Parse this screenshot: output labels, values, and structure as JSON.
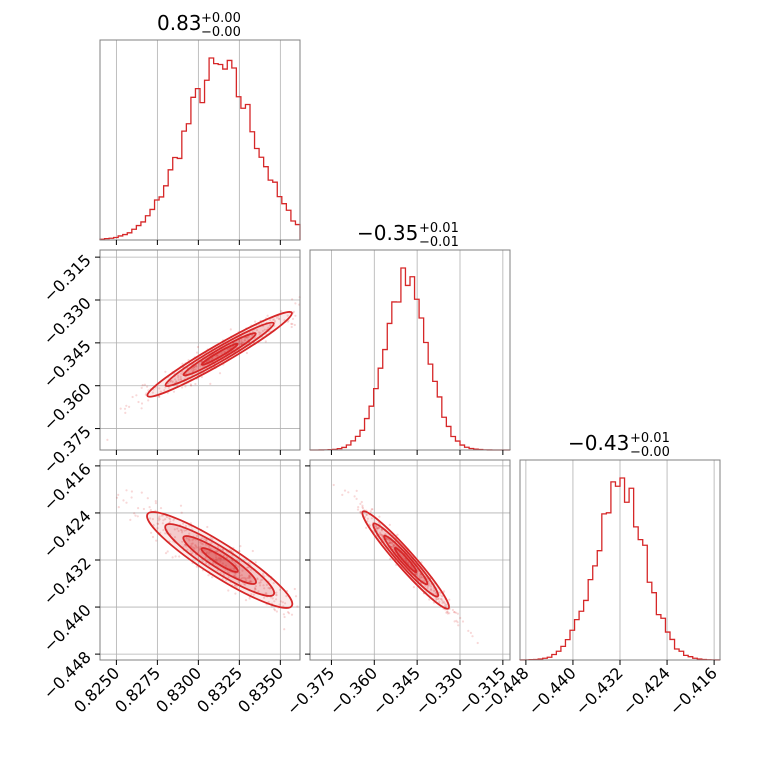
{
  "colors": {
    "accent": "#d62728",
    "grid": "#b0b0b0",
    "frame": "#808080"
  },
  "titles": [
    {
      "main": "0.83",
      "plus": "+0.00",
      "minus": "−0.00"
    },
    {
      "main": "−0.35",
      "plus": "+0.01",
      "minus": "−0.01"
    },
    {
      "main": "−0.43",
      "plus": "+0.01",
      "minus": "−0.00"
    }
  ],
  "chart_data": {
    "type": "corner",
    "grid": true,
    "params": [
      {
        "name": "",
        "range": [
          0.824,
          0.8362
        ],
        "ticks": [
          0.825,
          0.8275,
          0.83,
          0.8325,
          0.835
        ],
        "tick_labels": [
          "0.8250",
          "0.8275",
          "0.8300",
          "0.8325",
          "0.8350"
        ]
      },
      {
        "name": "",
        "range": [
          -0.3825,
          -0.3125
        ],
        "ticks": [
          -0.375,
          -0.36,
          -0.345,
          -0.33,
          -0.315
        ],
        "tick_labels": [
          "−0.375",
          "−0.360",
          "−0.345",
          "−0.330",
          "−0.315"
        ]
      },
      {
        "name": "",
        "range": [
          -0.449,
          -0.415
        ],
        "ticks": [
          -0.448,
          -0.44,
          -0.432,
          -0.424,
          -0.416
        ],
        "tick_labels": [
          "−0.448",
          "−0.440",
          "−0.432",
          "−0.424",
          "−0.416"
        ]
      }
    ],
    "histograms": [
      {
        "param": 0,
        "peak": 0.8313,
        "sigma": 0.0022,
        "bins": 44
      },
      {
        "param": 1,
        "peak": -0.349,
        "sigma": 0.0075,
        "bins": 44
      },
      {
        "param": 2,
        "peak": -0.432,
        "sigma": 0.0042,
        "bins": 44
      }
    ],
    "pairs": [
      {
        "x": 0,
        "y": 1,
        "correlation": 0.97
      },
      {
        "x": 0,
        "y": 2,
        "correlation": -0.93
      },
      {
        "x": 1,
        "y": 2,
        "correlation": -0.98
      }
    ]
  }
}
